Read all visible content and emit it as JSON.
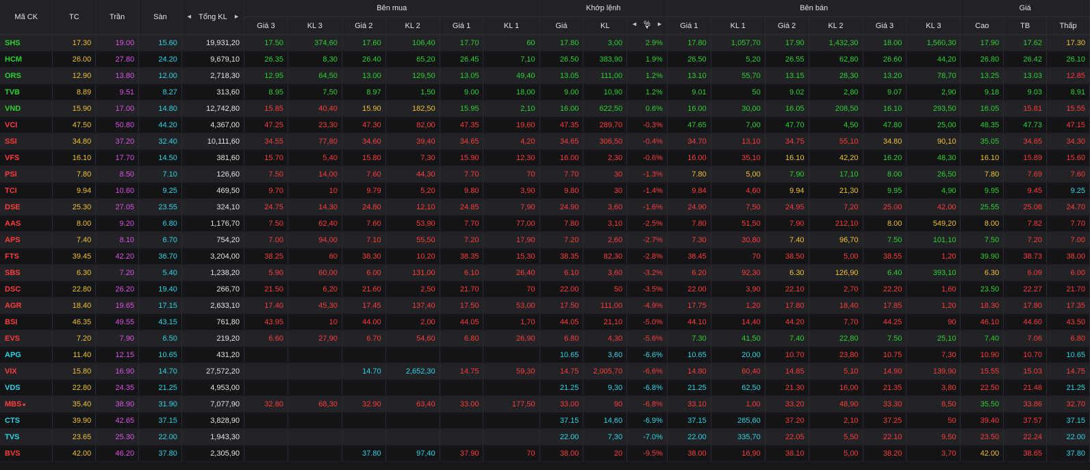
{
  "colors": {
    "ref": "#f2c12e",
    "ceil": "#e04fe6",
    "floor": "#2ed5e6",
    "up": "#2ed12e",
    "down": "#ff3c3c",
    "neutral": "#e4e4e4"
  },
  "header": {
    "symbol": "Mã CK",
    "ref": "TC",
    "ceil": "Trần",
    "floor": "Sàn",
    "total_vol": "Tổng KL",
    "buy_group": "Bên mua",
    "match_group": "Khớp lệnh",
    "sell_group": "Bên bán",
    "price_group": "Giá",
    "buy_cols": [
      "Giá 3",
      "KL 3",
      "Giá 2",
      "KL 2",
      "Giá 1",
      "KL 1"
    ],
    "match_cols": [
      "Giá",
      "KL",
      "%"
    ],
    "sell_cols": [
      "Giá 1",
      "KL 1",
      "Giá 2",
      "KL 2",
      "Giá 3",
      "KL 3"
    ],
    "price_cols": [
      "Cao",
      "TB",
      "Thấp"
    ],
    "arrow_left": "◄",
    "arrow_right": "►",
    "sort_icon": "▼"
  },
  "rows": [
    {
      "sym": "SHS",
      "c": "u",
      "tc": "17.30",
      "tr": "19.00",
      "san": "15.60",
      "tkl": "19,931,20",
      "b3": "17.50",
      "b3c": "u",
      "bk3": "374,60",
      "b2": "17.60",
      "b2c": "u",
      "bk2": "106,40",
      "b1": "17.70",
      "b1c": "u",
      "bk1": "60",
      "mp": "17.80",
      "mk": "3,00",
      "pct": "2.9%",
      "s1": "17.80",
      "s1c": "u",
      "sk1": "1,057,70",
      "s2": "17.90",
      "s2c": "u",
      "sk2": "1,432,30",
      "s3": "18.00",
      "s3c": "u",
      "sk3": "1,560,30",
      "cao": "17.90",
      "caoc": "u",
      "tb": "17.62",
      "tbc": "u",
      "thap": "17.30",
      "thapc": "r"
    },
    {
      "sym": "HCM",
      "c": "u",
      "tc": "26.00",
      "tr": "27.80",
      "san": "24.20",
      "tkl": "9,679,10",
      "b3": "26.35",
      "b3c": "u",
      "bk3": "8,30",
      "b2": "26.40",
      "b2c": "u",
      "bk2": "65,20",
      "b1": "26.45",
      "b1c": "u",
      "bk1": "7,10",
      "mp": "26.50",
      "mk": "383,90",
      "pct": "1.9%",
      "s1": "26.50",
      "s1c": "u",
      "sk1": "5,20",
      "s2": "26.55",
      "s2c": "u",
      "sk2": "62,80",
      "s3": "26.60",
      "s3c": "u",
      "sk3": "44,20",
      "cao": "26.80",
      "caoc": "u",
      "tb": "26.42",
      "tbc": "u",
      "thap": "26.10",
      "thapc": "u"
    },
    {
      "sym": "ORS",
      "c": "u",
      "tc": "12.90",
      "tr": "13.80",
      "san": "12.00",
      "tkl": "2,718,30",
      "b3": "12.95",
      "b3c": "u",
      "bk3": "64,50",
      "b2": "13.00",
      "b2c": "u",
      "bk2": "129,50",
      "b1": "13.05",
      "b1c": "u",
      "bk1": "49,40",
      "mp": "13.05",
      "mk": "111,00",
      "pct": "1.2%",
      "s1": "13.10",
      "s1c": "u",
      "sk1": "55,70",
      "s2": "13.15",
      "s2c": "u",
      "sk2": "28,30",
      "s3": "13.20",
      "s3c": "u",
      "sk3": "78,70",
      "cao": "13.25",
      "caoc": "u",
      "tb": "13.03",
      "tbc": "u",
      "thap": "12.85",
      "thapc": "d"
    },
    {
      "sym": "TVB",
      "c": "u",
      "tc": "8.89",
      "tr": "9.51",
      "san": "8.27",
      "tkl": "313,60",
      "b3": "8.95",
      "b3c": "u",
      "bk3": "7,50",
      "b2": "8.97",
      "b2c": "u",
      "bk2": "1,50",
      "b1": "9.00",
      "b1c": "u",
      "bk1": "18,00",
      "mp": "9.00",
      "mk": "10,90",
      "pct": "1.2%",
      "s1": "9.01",
      "s1c": "u",
      "sk1": "50",
      "s2": "9.02",
      "s2c": "u",
      "sk2": "2,80",
      "s3": "9.07",
      "s3c": "u",
      "sk3": "2,90",
      "cao": "9.18",
      "caoc": "u",
      "tb": "9.03",
      "tbc": "u",
      "thap": "8.91",
      "thapc": "u"
    },
    {
      "sym": "VND",
      "c": "u",
      "tc": "15.90",
      "tr": "17.00",
      "san": "14.80",
      "tkl": "12,742,80",
      "b3": "15.85",
      "b3c": "d",
      "bk3": "40,40",
      "b2": "15.90",
      "b2c": "r",
      "bk2": "182,50",
      "b1": "15.95",
      "b1c": "u",
      "bk1": "2,10",
      "mp": "16.00",
      "mk": "622,50",
      "pct": "0.6%",
      "s1": "16.00",
      "s1c": "u",
      "sk1": "30,00",
      "s2": "16.05",
      "s2c": "u",
      "sk2": "208,50",
      "s3": "16.10",
      "s3c": "u",
      "sk3": "293,50",
      "cao": "16.05",
      "caoc": "u",
      "tb": "15.81",
      "tbc": "d",
      "thap": "15.55",
      "thapc": "d"
    },
    {
      "sym": "VCI",
      "c": "d",
      "tc": "47.50",
      "tr": "50.80",
      "san": "44.20",
      "tkl": "4,367,00",
      "b3": "47.25",
      "b3c": "d",
      "bk3": "23,30",
      "b2": "47.30",
      "b2c": "d",
      "bk2": "82,00",
      "b1": "47.35",
      "b1c": "d",
      "bk1": "19,60",
      "mp": "47.35",
      "mk": "289,70",
      "pct": "-0.3%",
      "s1": "47.65",
      "s1c": "u",
      "sk1": "7,00",
      "s2": "47.70",
      "s2c": "u",
      "sk2": "4,50",
      "s3": "47.80",
      "s3c": "u",
      "sk3": "25,00",
      "cao": "48.35",
      "caoc": "u",
      "tb": "47.73",
      "tbc": "u",
      "thap": "47.15",
      "thapc": "d"
    },
    {
      "sym": "SSI",
      "c": "d",
      "tc": "34.80",
      "tr": "37.20",
      "san": "32.40",
      "tkl": "10,111,60",
      "b3": "34.55",
      "b3c": "d",
      "bk3": "77,80",
      "b2": "34.60",
      "b2c": "d",
      "bk2": "39,40",
      "b1": "34.65",
      "b1c": "d",
      "bk1": "4,20",
      "mp": "34.65",
      "mk": "306,50",
      "pct": "-0.4%",
      "s1": "34.70",
      "s1c": "d",
      "sk1": "13,10",
      "s2": "34.75",
      "s2c": "d",
      "sk2": "55,10",
      "s3": "34.80",
      "s3c": "r",
      "sk3": "90,10",
      "cao": "35.05",
      "caoc": "u",
      "tb": "34.65",
      "tbc": "d",
      "thap": "34.30",
      "thapc": "d"
    },
    {
      "sym": "VFS",
      "c": "d",
      "tc": "16.10",
      "tr": "17.70",
      "san": "14.50",
      "tkl": "381,60",
      "b3": "15.70",
      "b3c": "d",
      "bk3": "5,40",
      "b2": "15.80",
      "b2c": "d",
      "bk2": "7,30",
      "b1": "15.90",
      "b1c": "d",
      "bk1": "12,30",
      "mp": "16.00",
      "mk": "2,30",
      "pct": "-0.6%",
      "s1": "16.00",
      "s1c": "d",
      "sk1": "35,10",
      "s2": "16.10",
      "s2c": "r",
      "sk2": "42,20",
      "s3": "16.20",
      "s3c": "u",
      "sk3": "48,30",
      "cao": "16.10",
      "caoc": "r",
      "tb": "15.89",
      "tbc": "d",
      "thap": "15.60",
      "thapc": "d"
    },
    {
      "sym": "PSI",
      "c": "d",
      "tc": "7.80",
      "tr": "8.50",
      "san": "7.10",
      "tkl": "126,60",
      "b3": "7.50",
      "b3c": "d",
      "bk3": "14,00",
      "b2": "7.60",
      "b2c": "d",
      "bk2": "44,30",
      "b1": "7.70",
      "b1c": "d",
      "bk1": "70",
      "mp": "7.70",
      "mk": "30",
      "pct": "-1.3%",
      "s1": "7.80",
      "s1c": "r",
      "sk1": "5,00",
      "s2": "7.90",
      "s2c": "u",
      "sk2": "17,10",
      "s3": "8.00",
      "s3c": "u",
      "sk3": "26,50",
      "cao": "7.80",
      "caoc": "r",
      "tb": "7.69",
      "tbc": "d",
      "thap": "7.60",
      "thapc": "d"
    },
    {
      "sym": "TCI",
      "c": "d",
      "tc": "9.94",
      "tr": "10.60",
      "san": "9.25",
      "tkl": "469,50",
      "b3": "9.70",
      "b3c": "d",
      "bk3": "10",
      "b2": "9.79",
      "b2c": "d",
      "bk2": "5,20",
      "b1": "9.80",
      "b1c": "d",
      "bk1": "3,90",
      "mp": "9.80",
      "mk": "30",
      "pct": "-1.4%",
      "s1": "9.84",
      "s1c": "d",
      "sk1": "4,60",
      "s2": "9.94",
      "s2c": "r",
      "sk2": "21,30",
      "s3": "9.95",
      "s3c": "u",
      "sk3": "4,90",
      "cao": "9.95",
      "caoc": "u",
      "tb": "9.45",
      "tbc": "d",
      "thap": "9.25",
      "thapc": "f"
    },
    {
      "sym": "DSE",
      "c": "d",
      "tc": "25.30",
      "tr": "27.05",
      "san": "23.55",
      "tkl": "324,10",
      "b3": "24.75",
      "b3c": "d",
      "bk3": "14,30",
      "b2": "24.80",
      "b2c": "d",
      "bk2": "12,10",
      "b1": "24.85",
      "b1c": "d",
      "bk1": "7,90",
      "mp": "24.90",
      "mk": "3,60",
      "pct": "-1.6%",
      "s1": "24.90",
      "s1c": "d",
      "sk1": "7,50",
      "s2": "24.95",
      "s2c": "d",
      "sk2": "7,20",
      "s3": "25.00",
      "s3c": "d",
      "sk3": "42,00",
      "cao": "25.55",
      "caoc": "u",
      "tb": "25.08",
      "tbc": "d",
      "thap": "24.70",
      "thapc": "d"
    },
    {
      "sym": "AAS",
      "c": "d",
      "tc": "8.00",
      "tr": "9.20",
      "san": "6.80",
      "tkl": "1,176,70",
      "b3": "7.50",
      "b3c": "d",
      "bk3": "62,40",
      "b2": "7.60",
      "b2c": "d",
      "bk2": "53,90",
      "b1": "7.70",
      "b1c": "d",
      "bk1": "77,00",
      "mp": "7.80",
      "mk": "3,10",
      "pct": "-2.5%",
      "s1": "7.80",
      "s1c": "d",
      "sk1": "51,50",
      "s2": "7.90",
      "s2c": "d",
      "sk2": "212,10",
      "s3": "8.00",
      "s3c": "r",
      "sk3": "549,20",
      "cao": "8.00",
      "caoc": "r",
      "tb": "7.82",
      "tbc": "d",
      "thap": "7.70",
      "thapc": "d"
    },
    {
      "sym": "APS",
      "c": "d",
      "tc": "7.40",
      "tr": "8.10",
      "san": "6.70",
      "tkl": "754,20",
      "b3": "7.00",
      "b3c": "d",
      "bk3": "94,00",
      "b2": "7.10",
      "b2c": "d",
      "bk2": "55,50",
      "b1": "7.20",
      "b1c": "d",
      "bk1": "17,90",
      "mp": "7.20",
      "mk": "2,60",
      "pct": "-2.7%",
      "s1": "7.30",
      "s1c": "d",
      "sk1": "30,80",
      "s2": "7.40",
      "s2c": "r",
      "sk2": "96,70",
      "s3": "7.50",
      "s3c": "u",
      "sk3": "101,10",
      "cao": "7.50",
      "caoc": "u",
      "tb": "7.20",
      "tbc": "d",
      "thap": "7.00",
      "thapc": "d"
    },
    {
      "sym": "FTS",
      "c": "d",
      "tc": "39.45",
      "tr": "42.20",
      "san": "36.70",
      "tkl": "3,204,00",
      "b3": "38.25",
      "b3c": "d",
      "bk3": "60",
      "b2": "38.30",
      "b2c": "d",
      "bk2": "10,20",
      "b1": "38.35",
      "b1c": "d",
      "bk1": "15,30",
      "mp": "38.35",
      "mk": "82,30",
      "pct": "-2.8%",
      "s1": "38.45",
      "s1c": "d",
      "sk1": "70",
      "s2": "38.50",
      "s2c": "d",
      "sk2": "5,00",
      "s3": "38.55",
      "s3c": "d",
      "sk3": "1,20",
      "cao": "39.90",
      "caoc": "u",
      "tb": "38.73",
      "tbc": "d",
      "thap": "38.00",
      "thapc": "d"
    },
    {
      "sym": "SBS",
      "c": "d",
      "tc": "6.30",
      "tr": "7.20",
      "san": "5.40",
      "tkl": "1,238,20",
      "b3": "5.90",
      "b3c": "d",
      "bk3": "60,00",
      "b2": "6.00",
      "b2c": "d",
      "bk2": "131,00",
      "b1": "6.10",
      "b1c": "d",
      "bk1": "26,40",
      "mp": "6.10",
      "mk": "3,60",
      "pct": "-3.2%",
      "s1": "6.20",
      "s1c": "d",
      "sk1": "92,30",
      "s2": "6.30",
      "s2c": "r",
      "sk2": "126,90",
      "s3": "6.40",
      "s3c": "u",
      "sk3": "393,10",
      "cao": "6.30",
      "caoc": "r",
      "tb": "6.09",
      "tbc": "d",
      "thap": "6.00",
      "thapc": "d"
    },
    {
      "sym": "DSC",
      "c": "d",
      "tc": "22.80",
      "tr": "26.20",
      "san": "19.40",
      "tkl": "266,70",
      "b3": "21.50",
      "b3c": "d",
      "bk3": "6,20",
      "b2": "21.60",
      "b2c": "d",
      "bk2": "2,50",
      "b1": "21.70",
      "b1c": "d",
      "bk1": "70",
      "mp": "22.00",
      "mk": "50",
      "pct": "-3.5%",
      "s1": "22.00",
      "s1c": "d",
      "sk1": "3,90",
      "s2": "22.10",
      "s2c": "d",
      "sk2": "2,70",
      "s3": "22.20",
      "s3c": "d",
      "sk3": "1,60",
      "cao": "23.50",
      "caoc": "u",
      "tb": "22.27",
      "tbc": "d",
      "thap": "21.70",
      "thapc": "d"
    },
    {
      "sym": "AGR",
      "c": "d",
      "tc": "18.40",
      "tr": "19.65",
      "san": "17.15",
      "tkl": "2,633,10",
      "b3": "17.40",
      "b3c": "d",
      "bk3": "45,30",
      "b2": "17.45",
      "b2c": "d",
      "bk2": "137,40",
      "b1": "17.50",
      "b1c": "d",
      "bk1": "53,00",
      "mp": "17.50",
      "mk": "111,00",
      "pct": "-4.9%",
      "s1": "17.75",
      "s1c": "d",
      "sk1": "1,20",
      "s2": "17.80",
      "s2c": "d",
      "sk2": "18,40",
      "s3": "17.85",
      "s3c": "d",
      "sk3": "1,20",
      "cao": "18.30",
      "caoc": "d",
      "tb": "17.80",
      "tbc": "d",
      "thap": "17.35",
      "thapc": "d"
    },
    {
      "sym": "BSI",
      "c": "d",
      "tc": "46.35",
      "tr": "49.55",
      "san": "43.15",
      "tkl": "761,80",
      "b3": "43.95",
      "b3c": "d",
      "bk3": "10",
      "b2": "44.00",
      "b2c": "d",
      "bk2": "2,00",
      "b1": "44.05",
      "b1c": "d",
      "bk1": "1,70",
      "mp": "44.05",
      "mk": "21,10",
      "pct": "-5.0%",
      "s1": "44.10",
      "s1c": "d",
      "sk1": "14,40",
      "s2": "44.20",
      "s2c": "d",
      "sk2": "7,70",
      "s3": "44.25",
      "s3c": "d",
      "sk3": "90",
      "cao": "46.10",
      "caoc": "d",
      "tb": "44.60",
      "tbc": "d",
      "thap": "43.50",
      "thapc": "d"
    },
    {
      "sym": "EVS",
      "c": "d",
      "tc": "7.20",
      "tr": "7.90",
      "san": "6.50",
      "tkl": "219,20",
      "b3": "6.60",
      "b3c": "d",
      "bk3": "27,90",
      "b2": "6.70",
      "b2c": "d",
      "bk2": "54,60",
      "b1": "6.80",
      "b1c": "d",
      "bk1": "26,90",
      "mp": "6.80",
      "mk": "4,30",
      "pct": "-5.6%",
      "s1": "7.30",
      "s1c": "u",
      "sk1": "41,50",
      "s2": "7.40",
      "s2c": "u",
      "sk2": "22,80",
      "s3": "7.50",
      "s3c": "u",
      "sk3": "25,10",
      "cao": "7.40",
      "caoc": "u",
      "tb": "7.06",
      "tbc": "d",
      "thap": "6.80",
      "thapc": "d"
    },
    {
      "sym": "APG",
      "c": "f",
      "tc": "11.40",
      "tr": "12.15",
      "san": "10.65",
      "tkl": "431,20",
      "b3": "",
      "b3c": "d",
      "bk3": "",
      "b2": "",
      "b2c": "d",
      "bk2": "",
      "b1": "",
      "b1c": "d",
      "bk1": "",
      "mp": "10.65",
      "mk": "3,60",
      "pct": "-6.6%",
      "s1": "10.65",
      "s1c": "f",
      "sk1": "20,00",
      "s2": "10.70",
      "s2c": "d",
      "sk2": "23,80",
      "s3": "10.75",
      "s3c": "d",
      "sk3": "7,30",
      "cao": "10.90",
      "caoc": "d",
      "tb": "10.70",
      "tbc": "d",
      "thap": "10.65",
      "thapc": "f"
    },
    {
      "sym": "VIX",
      "c": "d",
      "tc": "15.80",
      "tr": "16.90",
      "san": "14.70",
      "tkl": "27,572,20",
      "b3": "",
      "b3c": "d",
      "bk3": "",
      "b2": "14.70",
      "b2c": "f",
      "bk2": "2,652,30",
      "b1": "14.75",
      "b1c": "d",
      "bk1": "59,30",
      "mp": "14.75",
      "mk": "2,005,70",
      "pct": "-6.6%",
      "s1": "14.80",
      "s1c": "d",
      "sk1": "60,40",
      "s2": "14.85",
      "s2c": "d",
      "sk2": "5,10",
      "s3": "14.90",
      "s3c": "d",
      "sk3": "139,90",
      "cao": "15.55",
      "caoc": "d",
      "tb": "15.03",
      "tbc": "d",
      "thap": "14.75",
      "thapc": "d"
    },
    {
      "sym": "VDS",
      "c": "f",
      "tc": "22.80",
      "tr": "24.35",
      "san": "21.25",
      "tkl": "4,953,00",
      "b3": "",
      "b3c": "d",
      "bk3": "",
      "b2": "",
      "b2c": "d",
      "bk2": "",
      "b1": "",
      "b1c": "d",
      "bk1": "",
      "mp": "21.25",
      "mk": "9,30",
      "pct": "-6.8%",
      "s1": "21.25",
      "s1c": "f",
      "sk1": "62,50",
      "s2": "21.30",
      "s2c": "d",
      "sk2": "16,00",
      "s3": "21.35",
      "s3c": "d",
      "sk3": "3,80",
      "cao": "22.50",
      "caoc": "d",
      "tb": "21.48",
      "tbc": "d",
      "thap": "21.25",
      "thapc": "f"
    },
    {
      "sym": "MBS",
      "dot": "●",
      "c": "d",
      "tc": "35.40",
      "tr": "38.90",
      "san": "31.90",
      "tkl": "7,077,90",
      "b3": "32.80",
      "b3c": "d",
      "bk3": "68,30",
      "b2": "32.90",
      "b2c": "d",
      "bk2": "63,40",
      "b1": "33.00",
      "b1c": "d",
      "bk1": "177,50",
      "mp": "33.00",
      "mk": "90",
      "pct": "-6.8%",
      "s1": "33.10",
      "s1c": "d",
      "sk1": "1,00",
      "s2": "33.20",
      "s2c": "d",
      "sk2": "48,90",
      "s3": "33.30",
      "s3c": "d",
      "sk3": "8,50",
      "cao": "35.50",
      "caoc": "u",
      "tb": "33.86",
      "tbc": "d",
      "thap": "32.70",
      "thapc": "d"
    },
    {
      "sym": "CTS",
      "c": "f",
      "tc": "39.90",
      "tr": "42.65",
      "san": "37.15",
      "tkl": "3,828,90",
      "b3": "",
      "b3c": "d",
      "bk3": "",
      "b2": "",
      "b2c": "d",
      "bk2": "",
      "b1": "",
      "b1c": "d",
      "bk1": "",
      "mp": "37.15",
      "mk": "14,60",
      "pct": "-6.9%",
      "s1": "37.15",
      "s1c": "f",
      "sk1": "265,60",
      "s2": "37.20",
      "s2c": "d",
      "sk2": "2,10",
      "s3": "37.25",
      "s3c": "d",
      "sk3": "50",
      "cao": "39.40",
      "caoc": "d",
      "tb": "37.57",
      "tbc": "d",
      "thap": "37.15",
      "thapc": "f"
    },
    {
      "sym": "TVS",
      "c": "f",
      "tc": "23.65",
      "tr": "25.30",
      "san": "22.00",
      "tkl": "1,943,30",
      "b3": "",
      "b3c": "d",
      "bk3": "",
      "b2": "",
      "b2c": "d",
      "bk2": "",
      "b1": "",
      "b1c": "d",
      "bk1": "",
      "mp": "22.00",
      "mk": "7,30",
      "pct": "-7.0%",
      "s1": "22.00",
      "s1c": "f",
      "sk1": "335,70",
      "s2": "22.05",
      "s2c": "d",
      "sk2": "5,50",
      "s3": "22.10",
      "s3c": "d",
      "sk3": "9,50",
      "cao": "23.50",
      "caoc": "d",
      "tb": "22.24",
      "tbc": "d",
      "thap": "22.00",
      "thapc": "f"
    },
    {
      "sym": "BVS",
      "c": "d",
      "tc": "42.00",
      "tr": "46.20",
      "san": "37.80",
      "tkl": "2,305,90",
      "b3": "",
      "b3c": "d",
      "bk3": "",
      "b2": "37.80",
      "b2c": "f",
      "bk2": "97,40",
      "b1": "37.90",
      "b1c": "d",
      "bk1": "70",
      "mp": "38.00",
      "mk": "20",
      "pct": "-9.5%",
      "s1": "38.00",
      "s1c": "d",
      "sk1": "16,90",
      "s2": "38.10",
      "s2c": "d",
      "sk2": "5,00",
      "s3": "38.20",
      "s3c": "d",
      "sk3": "3,70",
      "cao": "42.00",
      "caoc": "r",
      "tb": "38.65",
      "tbc": "d",
      "thap": "37.80",
      "thapc": "f"
    }
  ]
}
